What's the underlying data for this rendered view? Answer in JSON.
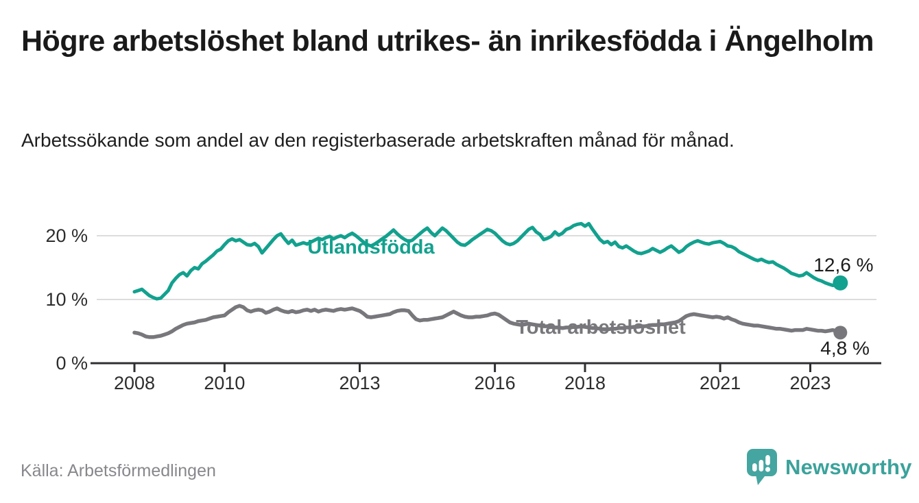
{
  "header": {
    "title": "Högre arbetslöshet bland utrikes- än inrikesfödda i Ängelholm",
    "subtitle": "Arbetssökande som andel av den registerbaserade arbetskraften månad för månad."
  },
  "footer": {
    "source": "Källa: Arbetsförmedlingen",
    "brand": "Newsworthy"
  },
  "colors": {
    "accent_teal": "#12a18e",
    "accent_gray": "#78777b",
    "axis": "#2f2f33",
    "grid": "#dcdcdc",
    "brand_teal": "#45a5a0"
  },
  "chart_data": {
    "type": "line",
    "unit": "%",
    "x_start": {
      "year": 2008,
      "month": 1
    },
    "x_end": {
      "year": 2023,
      "month": 9
    },
    "points_per_year": 12,
    "grid": "horizontal",
    "legend_position": "inline-labels",
    "xticks": [
      "2008",
      "2010",
      "2013",
      "2016",
      "2018",
      "2021",
      "2023"
    ],
    "yticks": [
      {
        "value": 0,
        "label": "0 %"
      },
      {
        "value": 10,
        "label": "10 %"
      },
      {
        "value": 20,
        "label": "20 %"
      }
    ],
    "ylim": [
      0,
      23.5
    ],
    "series": [
      {
        "name": "Utlandsfödda",
        "color": "#12a18e",
        "end_value": 12.6,
        "end_value_label": "12,6 %",
        "values": [
          11.2,
          11.4,
          11.6,
          11.1,
          10.6,
          10.3,
          10.1,
          10.2,
          10.8,
          11.4,
          12.6,
          13.3,
          13.9,
          14.2,
          13.7,
          14.5,
          15.0,
          14.8,
          15.6,
          16.0,
          16.5,
          17.0,
          17.6,
          17.9,
          18.6,
          19.2,
          19.5,
          19.2,
          19.4,
          19.0,
          18.6,
          18.5,
          18.8,
          18.3,
          17.3,
          18.0,
          18.7,
          19.4,
          20.0,
          20.3,
          19.5,
          18.8,
          19.3,
          18.5,
          18.7,
          18.9,
          18.7,
          19.0,
          19.3,
          19.6,
          19.4,
          19.7,
          19.9,
          19.5,
          19.8,
          20.0,
          19.7,
          20.1,
          20.4,
          20.0,
          19.5,
          19.0,
          18.6,
          18.4,
          18.7,
          19.1,
          19.5,
          19.9,
          20.4,
          20.9,
          20.3,
          19.8,
          19.4,
          19.1,
          19.3,
          19.8,
          20.3,
          20.8,
          21.2,
          20.5,
          20.0,
          20.6,
          21.2,
          20.8,
          20.2,
          19.6,
          19.0,
          18.6,
          18.5,
          18.9,
          19.4,
          19.8,
          20.2,
          20.6,
          21.0,
          20.8,
          20.4,
          19.8,
          19.2,
          18.8,
          18.6,
          18.8,
          19.2,
          19.8,
          20.4,
          21.0,
          21.3,
          20.6,
          20.2,
          19.4,
          19.6,
          19.9,
          20.6,
          20.1,
          20.4,
          21.0,
          21.2,
          21.6,
          21.8,
          21.9,
          21.5,
          21.9,
          21.0,
          20.2,
          19.4,
          18.9,
          19.1,
          18.6,
          19.0,
          18.3,
          18.1,
          18.4,
          18.0,
          17.6,
          17.3,
          17.2,
          17.4,
          17.6,
          18.0,
          17.7,
          17.4,
          17.7,
          18.1,
          18.4,
          17.9,
          17.4,
          17.7,
          18.3,
          18.7,
          19.0,
          19.2,
          19.0,
          18.8,
          18.7,
          18.9,
          19.0,
          19.1,
          18.8,
          18.4,
          18.3,
          18.0,
          17.5,
          17.2,
          16.9,
          16.6,
          16.3,
          16.1,
          16.3,
          16.0,
          15.8,
          15.9,
          15.5,
          15.2,
          14.9,
          14.5,
          14.1,
          13.9,
          13.7,
          13.8,
          14.2,
          13.8,
          13.4,
          13.1,
          12.9,
          12.6,
          12.4,
          12.2,
          12.3,
          12.6
        ]
      },
      {
        "name": "Total arbetslöshet",
        "color": "#78777b",
        "end_value": 4.8,
        "end_value_label": "4,8 %",
        "values": [
          4.8,
          4.7,
          4.5,
          4.2,
          4.1,
          4.1,
          4.2,
          4.3,
          4.5,
          4.7,
          5.0,
          5.4,
          5.7,
          6.0,
          6.2,
          6.3,
          6.4,
          6.6,
          6.7,
          6.8,
          7.0,
          7.2,
          7.3,
          7.4,
          7.5,
          8.0,
          8.4,
          8.8,
          9.0,
          8.8,
          8.3,
          8.1,
          8.3,
          8.4,
          8.3,
          7.9,
          8.1,
          8.4,
          8.6,
          8.3,
          8.1,
          8.0,
          8.2,
          8.0,
          8.1,
          8.3,
          8.4,
          8.2,
          8.4,
          8.1,
          8.3,
          8.4,
          8.3,
          8.2,
          8.4,
          8.5,
          8.4,
          8.5,
          8.6,
          8.4,
          8.2,
          7.8,
          7.3,
          7.2,
          7.3,
          7.4,
          7.5,
          7.6,
          7.7,
          8.0,
          8.2,
          8.3,
          8.3,
          8.2,
          7.5,
          6.9,
          6.7,
          6.8,
          6.8,
          6.9,
          7.0,
          7.1,
          7.2,
          7.5,
          7.8,
          8.1,
          7.8,
          7.5,
          7.3,
          7.2,
          7.2,
          7.3,
          7.3,
          7.4,
          7.5,
          7.7,
          7.8,
          7.6,
          7.2,
          6.8,
          6.4,
          6.2,
          6.1,
          6.0,
          6.1,
          6.2,
          6.1,
          6.0,
          5.9,
          5.8,
          5.8,
          5.7,
          5.6,
          5.6,
          5.5,
          5.6,
          5.6,
          5.7,
          5.7,
          5.8,
          5.7,
          5.6,
          5.5,
          5.5,
          5.4,
          5.3,
          5.3,
          5.4,
          5.4,
          5.5,
          5.5,
          5.6,
          5.6,
          5.7,
          5.7,
          5.8,
          5.8,
          5.9,
          6.0,
          6.0,
          6.1,
          6.1,
          6.2,
          6.3,
          6.4,
          6.6,
          7.0,
          7.4,
          7.6,
          7.7,
          7.6,
          7.5,
          7.4,
          7.3,
          7.2,
          7.3,
          7.2,
          7.0,
          7.2,
          6.9,
          6.7,
          6.4,
          6.2,
          6.1,
          6.0,
          5.9,
          5.9,
          5.8,
          5.7,
          5.6,
          5.5,
          5.4,
          5.4,
          5.3,
          5.2,
          5.1,
          5.2,
          5.2,
          5.2,
          5.4,
          5.3,
          5.2,
          5.1,
          5.1,
          5.0,
          5.1,
          5.2,
          5.0,
          4.8
        ]
      }
    ]
  }
}
